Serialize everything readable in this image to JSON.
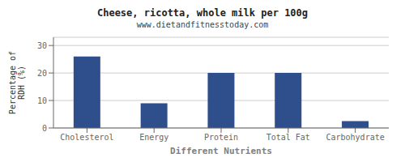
{
  "chart_data": {
    "type": "bar",
    "title": "Cheese, ricotta, whole milk per 100g",
    "subtitle": "www.dietandfitnesstoday.com",
    "xlabel": "Different Nutrients",
    "ylabel": "Percentage of\nRDH (%)",
    "categories": [
      "Cholesterol",
      "Energy",
      "Protein",
      "Total Fat",
      "Carbohydrate"
    ],
    "values": [
      26,
      9,
      20,
      20,
      2.5
    ],
    "color": "#2e4e8c",
    "ylim": [
      0,
      33
    ],
    "yticks": [
      0,
      10,
      20,
      30
    ],
    "grid": true
  }
}
